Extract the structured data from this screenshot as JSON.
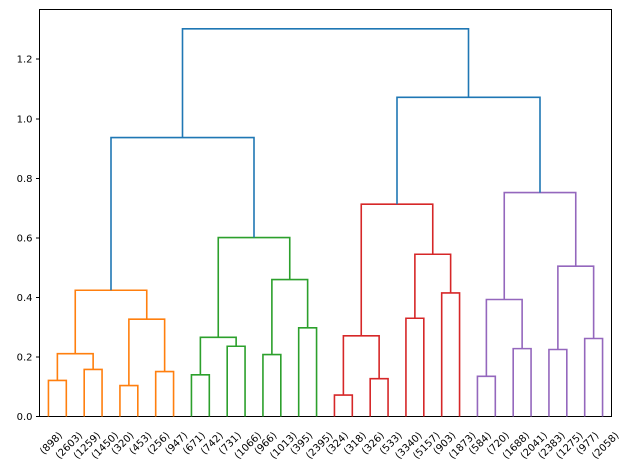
{
  "chart_data": {
    "type": "dendrogram",
    "title": "",
    "xlabel": "",
    "ylabel": "",
    "grid": false,
    "legend": null,
    "ylim": [
      0,
      1.367
    ],
    "ytick_labels": [
      "0.0",
      "0.2",
      "0.4",
      "0.6",
      "0.8",
      "1.0",
      "1.2"
    ],
    "ytick_values": [
      0.0,
      0.2,
      0.4,
      0.6,
      0.8,
      1.0,
      1.2
    ],
    "leaf_labels": [
      "(898)",
      "(2603)",
      "(1259)",
      "(1450)",
      "(320)",
      "(453)",
      "(256)",
      "(947)",
      "(671)",
      "(742)",
      "(731)",
      "(1066)",
      "(966)",
      "(1013)",
      "(395)",
      "(2395)",
      "(324)",
      "(318)",
      "(326)",
      "(533)",
      "(3340)",
      "(5157)",
      "(903)",
      "(1873)",
      "(584)",
      "(720)",
      "(1688)",
      "(2041)",
      "(2383)",
      "(1275)",
      "(977)",
      "(2058)"
    ],
    "colors": {
      "above_threshold": "#1f77b4",
      "cluster1": "#ff7f0e",
      "cluster2": "#2ca02c",
      "cluster3": "#d62728",
      "cluster4": "#9467bd",
      "spine": "#000000",
      "text": "#000000",
      "background": "#ffffff"
    },
    "clusters": [
      {
        "name": "cluster-1",
        "color": "#ff7f0e",
        "leaf_range": [
          0,
          7
        ]
      },
      {
        "name": "cluster-2",
        "color": "#2ca02c",
        "leaf_range": [
          8,
          15
        ]
      },
      {
        "name": "cluster-3",
        "color": "#d62728",
        "leaf_range": [
          16,
          23
        ]
      },
      {
        "name": "cluster-4",
        "color": "#9467bd",
        "leaf_range": [
          24,
          31
        ]
      }
    ],
    "linkage": [
      {
        "id": "A1",
        "children": [
          "L0",
          "L1"
        ],
        "height": 0.121,
        "color": "#ff7f0e"
      },
      {
        "id": "A2",
        "children": [
          "L2",
          "L3"
        ],
        "height": 0.158,
        "color": "#ff7f0e"
      },
      {
        "id": "A4",
        "children": [
          "L4",
          "L5"
        ],
        "height": 0.104,
        "color": "#ff7f0e"
      },
      {
        "id": "A5",
        "children": [
          "L6",
          "L7"
        ],
        "height": 0.151,
        "color": "#ff7f0e"
      },
      {
        "id": "A3",
        "children": [
          "A1",
          "A2"
        ],
        "height": 0.211,
        "color": "#ff7f0e"
      },
      {
        "id": "A6",
        "children": [
          "A4",
          "A5"
        ],
        "height": 0.327,
        "color": "#ff7f0e"
      },
      {
        "id": "A7",
        "children": [
          "A3",
          "A6"
        ],
        "height": 0.424,
        "color": "#ff7f0e"
      },
      {
        "id": "G1",
        "children": [
          "L8",
          "L9"
        ],
        "height": 0.14,
        "color": "#2ca02c"
      },
      {
        "id": "G2",
        "children": [
          "L10",
          "L11"
        ],
        "height": 0.236,
        "color": "#2ca02c"
      },
      {
        "id": "G3",
        "children": [
          "G1",
          "G2"
        ],
        "height": 0.266,
        "color": "#2ca02c"
      },
      {
        "id": "G4",
        "children": [
          "L12",
          "L13"
        ],
        "height": 0.208,
        "color": "#2ca02c"
      },
      {
        "id": "G5",
        "children": [
          "L14",
          "L15"
        ],
        "height": 0.298,
        "color": "#2ca02c"
      },
      {
        "id": "G6",
        "children": [
          "G4",
          "G5"
        ],
        "height": 0.46,
        "color": "#2ca02c"
      },
      {
        "id": "G7",
        "children": [
          "G3",
          "G6"
        ],
        "height": 0.601,
        "color": "#2ca02c"
      },
      {
        "id": "R1",
        "children": [
          "L16",
          "L17"
        ],
        "height": 0.072,
        "color": "#d62728"
      },
      {
        "id": "R2",
        "children": [
          "L18",
          "L19"
        ],
        "height": 0.127,
        "color": "#d62728"
      },
      {
        "id": "R3",
        "children": [
          "R1",
          "R2"
        ],
        "height": 0.271,
        "color": "#d62728"
      },
      {
        "id": "R4",
        "children": [
          "L20",
          "L21"
        ],
        "height": 0.33,
        "color": "#d62728"
      },
      {
        "id": "R5",
        "children": [
          "L22",
          "L23"
        ],
        "height": 0.415,
        "color": "#d62728"
      },
      {
        "id": "R6",
        "children": [
          "R4",
          "R5"
        ],
        "height": 0.545,
        "color": "#d62728"
      },
      {
        "id": "R7",
        "children": [
          "R3",
          "R6"
        ],
        "height": 0.713,
        "color": "#d62728"
      },
      {
        "id": "P1",
        "children": [
          "L24",
          "L25"
        ],
        "height": 0.135,
        "color": "#9467bd"
      },
      {
        "id": "P2",
        "children": [
          "L26",
          "L27"
        ],
        "height": 0.228,
        "color": "#9467bd"
      },
      {
        "id": "P3",
        "children": [
          "P1",
          "P2"
        ],
        "height": 0.393,
        "color": "#9467bd"
      },
      {
        "id": "P4",
        "children": [
          "L28",
          "L29"
        ],
        "height": 0.225,
        "color": "#9467bd"
      },
      {
        "id": "P5",
        "children": [
          "L30",
          "L31"
        ],
        "height": 0.262,
        "color": "#9467bd"
      },
      {
        "id": "P6",
        "children": [
          "P4",
          "P5"
        ],
        "height": 0.505,
        "color": "#9467bd"
      },
      {
        "id": "P7",
        "children": [
          "P3",
          "P6"
        ],
        "height": 0.752,
        "color": "#9467bd"
      },
      {
        "id": "B1",
        "children": [
          "A7",
          "G7"
        ],
        "height": 0.937,
        "color": "#1f77b4"
      },
      {
        "id": "B2",
        "children": [
          "R7",
          "P7"
        ],
        "height": 1.072,
        "color": "#1f77b4"
      },
      {
        "id": "ROOT",
        "children": [
          "B1",
          "B2"
        ],
        "height": 1.302,
        "color": "#1f77b4"
      }
    ]
  }
}
